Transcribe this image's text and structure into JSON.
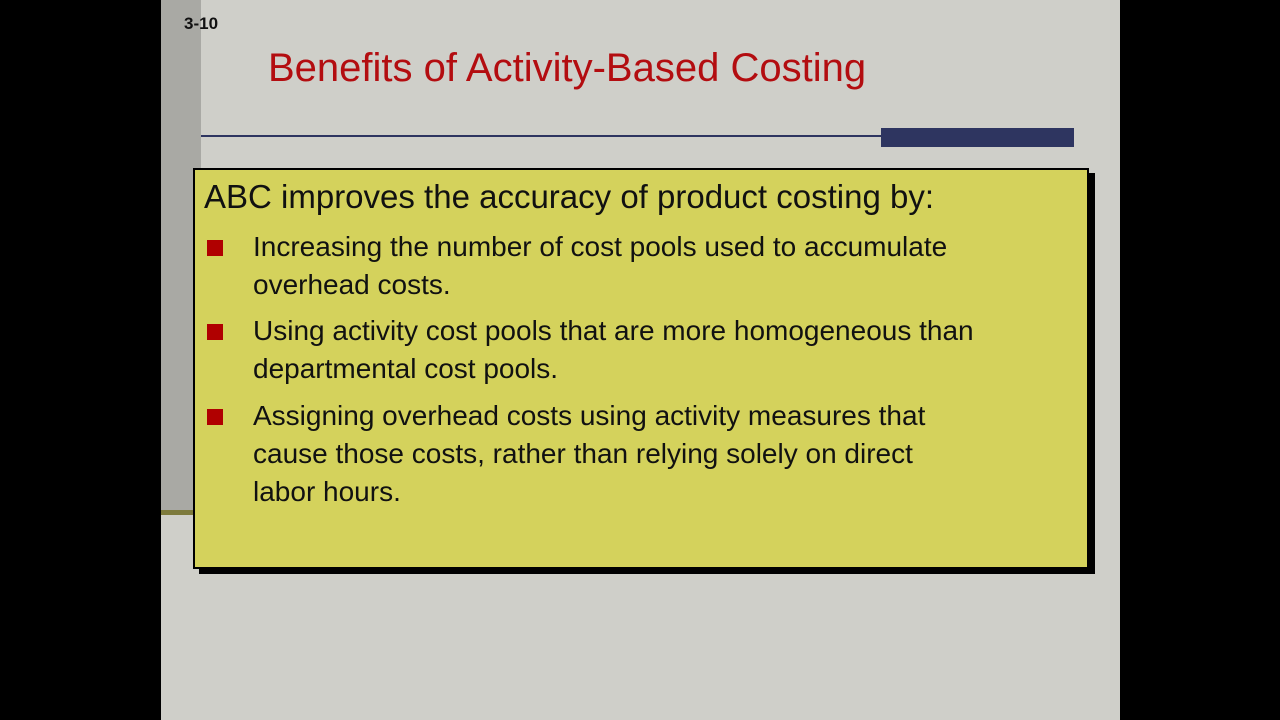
{
  "slide": {
    "number": "3-10",
    "title": "Benefits of Activity-Based Costing",
    "lead": "ABC improves the accuracy of product costing by:",
    "bullets": [
      {
        "line1": "Increasing the number of cost pools used to accumulate",
        "line2": "overhead costs."
      },
      {
        "line1": "Using activity cost pools that are more homogeneous than",
        "line2": "departmental cost pools."
      },
      {
        "line1": "Assigning overhead costs using activity measures that",
        "line2": "cause those costs, rather than relying solely on direct",
        "line3": "labor hours."
      }
    ],
    "colors": {
      "title": "#b30d10",
      "bullet": "#b00000",
      "box": "#d4d25c",
      "accent_bar": "#2e3560"
    },
    "bullet_icon": "square-bullet-icon"
  }
}
